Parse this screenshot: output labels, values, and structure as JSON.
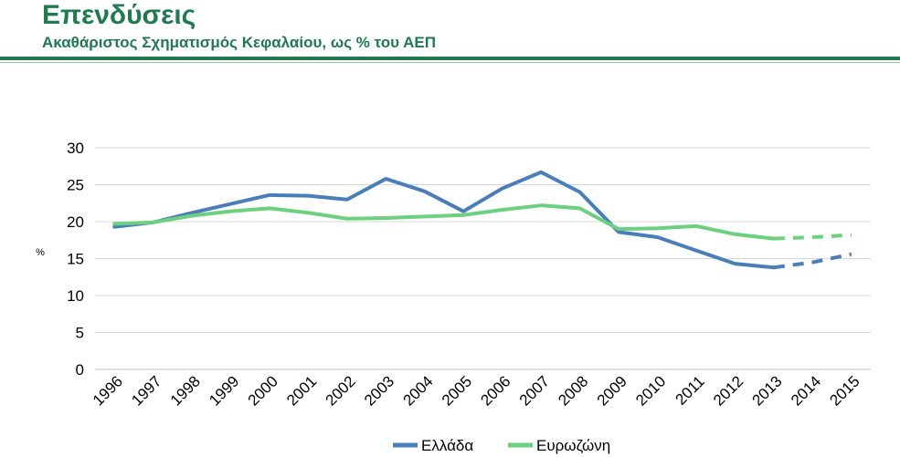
{
  "header": {
    "title": "Επενδύσεις",
    "subtitle": "Ακαθάριστος Σχηματισμός Κεφαλαίου, ως % του ΑΕΠ"
  },
  "chart_data": {
    "type": "line",
    "title": "",
    "xlabel": "",
    "ylabel": "%",
    "categories": [
      "1996",
      "1997",
      "1998",
      "1999",
      "2000",
      "2001",
      "2002",
      "2003",
      "2004",
      "2005",
      "2006",
      "2007",
      "2008",
      "2009",
      "2010",
      "2011",
      "2012",
      "2013",
      "2014",
      "2015"
    ],
    "yticks": [
      "0",
      "5",
      "10",
      "15",
      "20",
      "25",
      "30"
    ],
    "ylim": [
      0,
      30
    ],
    "grid": true,
    "legend": "bottom-center",
    "forecast_from": "2013",
    "series": [
      {
        "name": "Ελλάδα",
        "color": "#4a7ebb",
        "values": [
          19.3,
          19.9,
          21.2,
          22.4,
          23.6,
          23.5,
          23.0,
          25.8,
          24.1,
          21.4,
          24.5,
          26.7,
          24.0,
          18.6,
          17.9,
          16.1,
          14.3,
          13.8,
          14.5,
          15.6
        ]
      },
      {
        "name": "Ευρωζώνη",
        "color": "#6cd07f",
        "values": [
          19.7,
          19.9,
          20.8,
          21.4,
          21.8,
          21.2,
          20.4,
          20.5,
          20.7,
          20.9,
          21.6,
          22.2,
          21.8,
          19.0,
          19.1,
          19.4,
          18.3,
          17.7,
          17.9,
          18.2
        ]
      }
    ]
  }
}
